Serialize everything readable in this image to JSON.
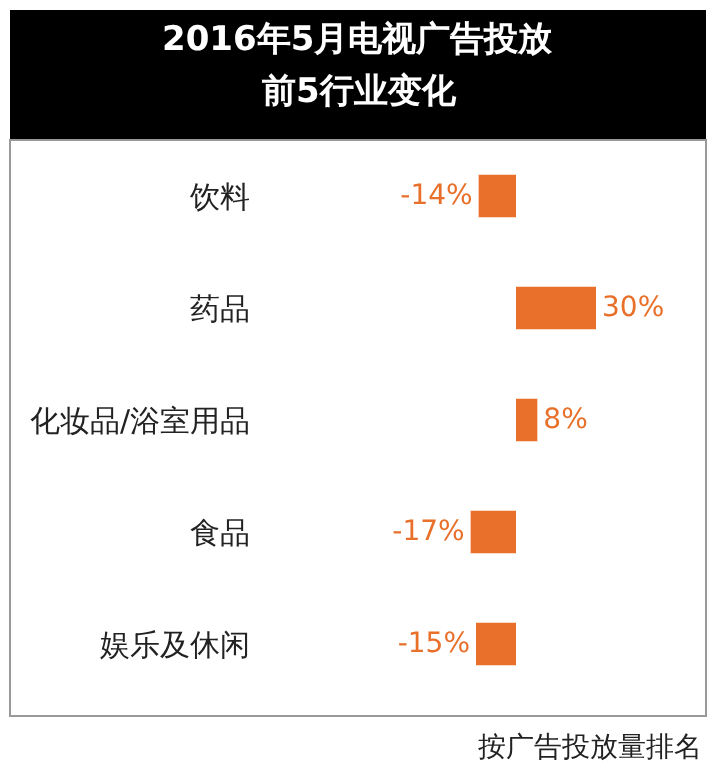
{
  "chart_data": {
    "type": "bar",
    "orientation": "horizontal",
    "title": "2016年5月电视广告投放",
    "subtitle": "前5行业变化",
    "categories": [
      "饮料",
      "药品",
      "化妆品/浴室用品",
      "食品",
      "娱乐及休闲"
    ],
    "values": [
      -14,
      30,
      8,
      -17,
      -15
    ],
    "value_labels": [
      "-14%",
      "30%",
      "8%",
      "-17%",
      "-15%"
    ],
    "color": "#e8702a",
    "legend": false,
    "annotations": [
      "按广告投放量排名"
    ]
  }
}
